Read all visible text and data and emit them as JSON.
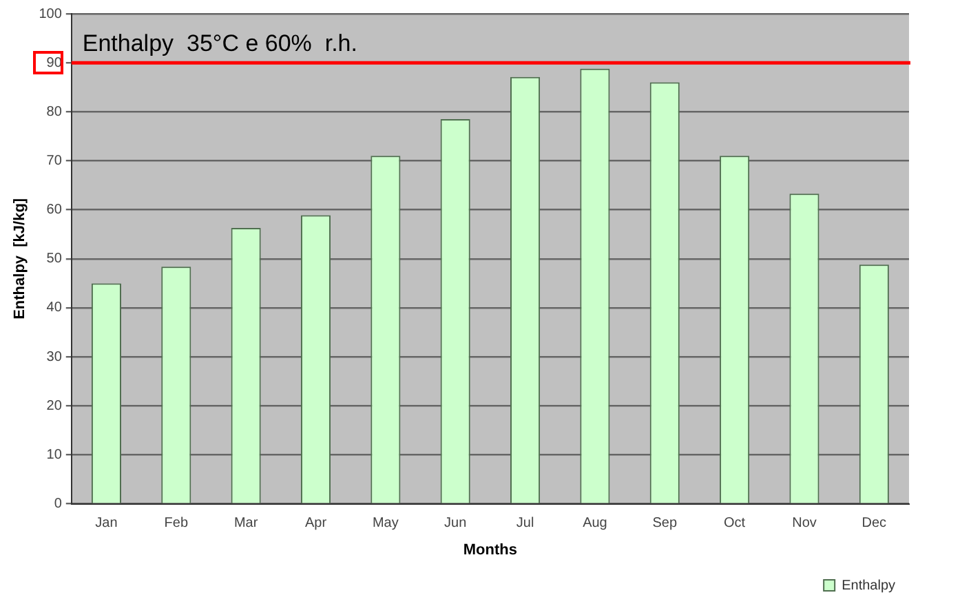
{
  "chart_data": {
    "type": "bar",
    "categories": [
      "Jan",
      "Feb",
      "Mar",
      "Apr",
      "May",
      "Jun",
      "Jul",
      "Aug",
      "Sep",
      "Oct",
      "Nov",
      "Dec"
    ],
    "series": [
      {
        "name": "Enthalpy",
        "color": "#ccffcc",
        "values": [
          45,
          48.4,
          56.3,
          58.9,
          71,
          78.5,
          87.1,
          88.8,
          86,
          71,
          63.3,
          48.8
        ]
      }
    ],
    "xlabel": "Months",
    "ylabel": "Enthalpy  [kJ/kg]",
    "ylim": [
      0,
      100
    ],
    "yticks": [
      0,
      10,
      20,
      30,
      40,
      50,
      60,
      70,
      80,
      90,
      100
    ],
    "grid": "y",
    "legend": "bottom right",
    "ref_lines": [
      {
        "axis": "y",
        "value": 90,
        "label": "Enthalpy  35°C e 60%  r.h.",
        "color": "#ff0000"
      }
    ]
  }
}
